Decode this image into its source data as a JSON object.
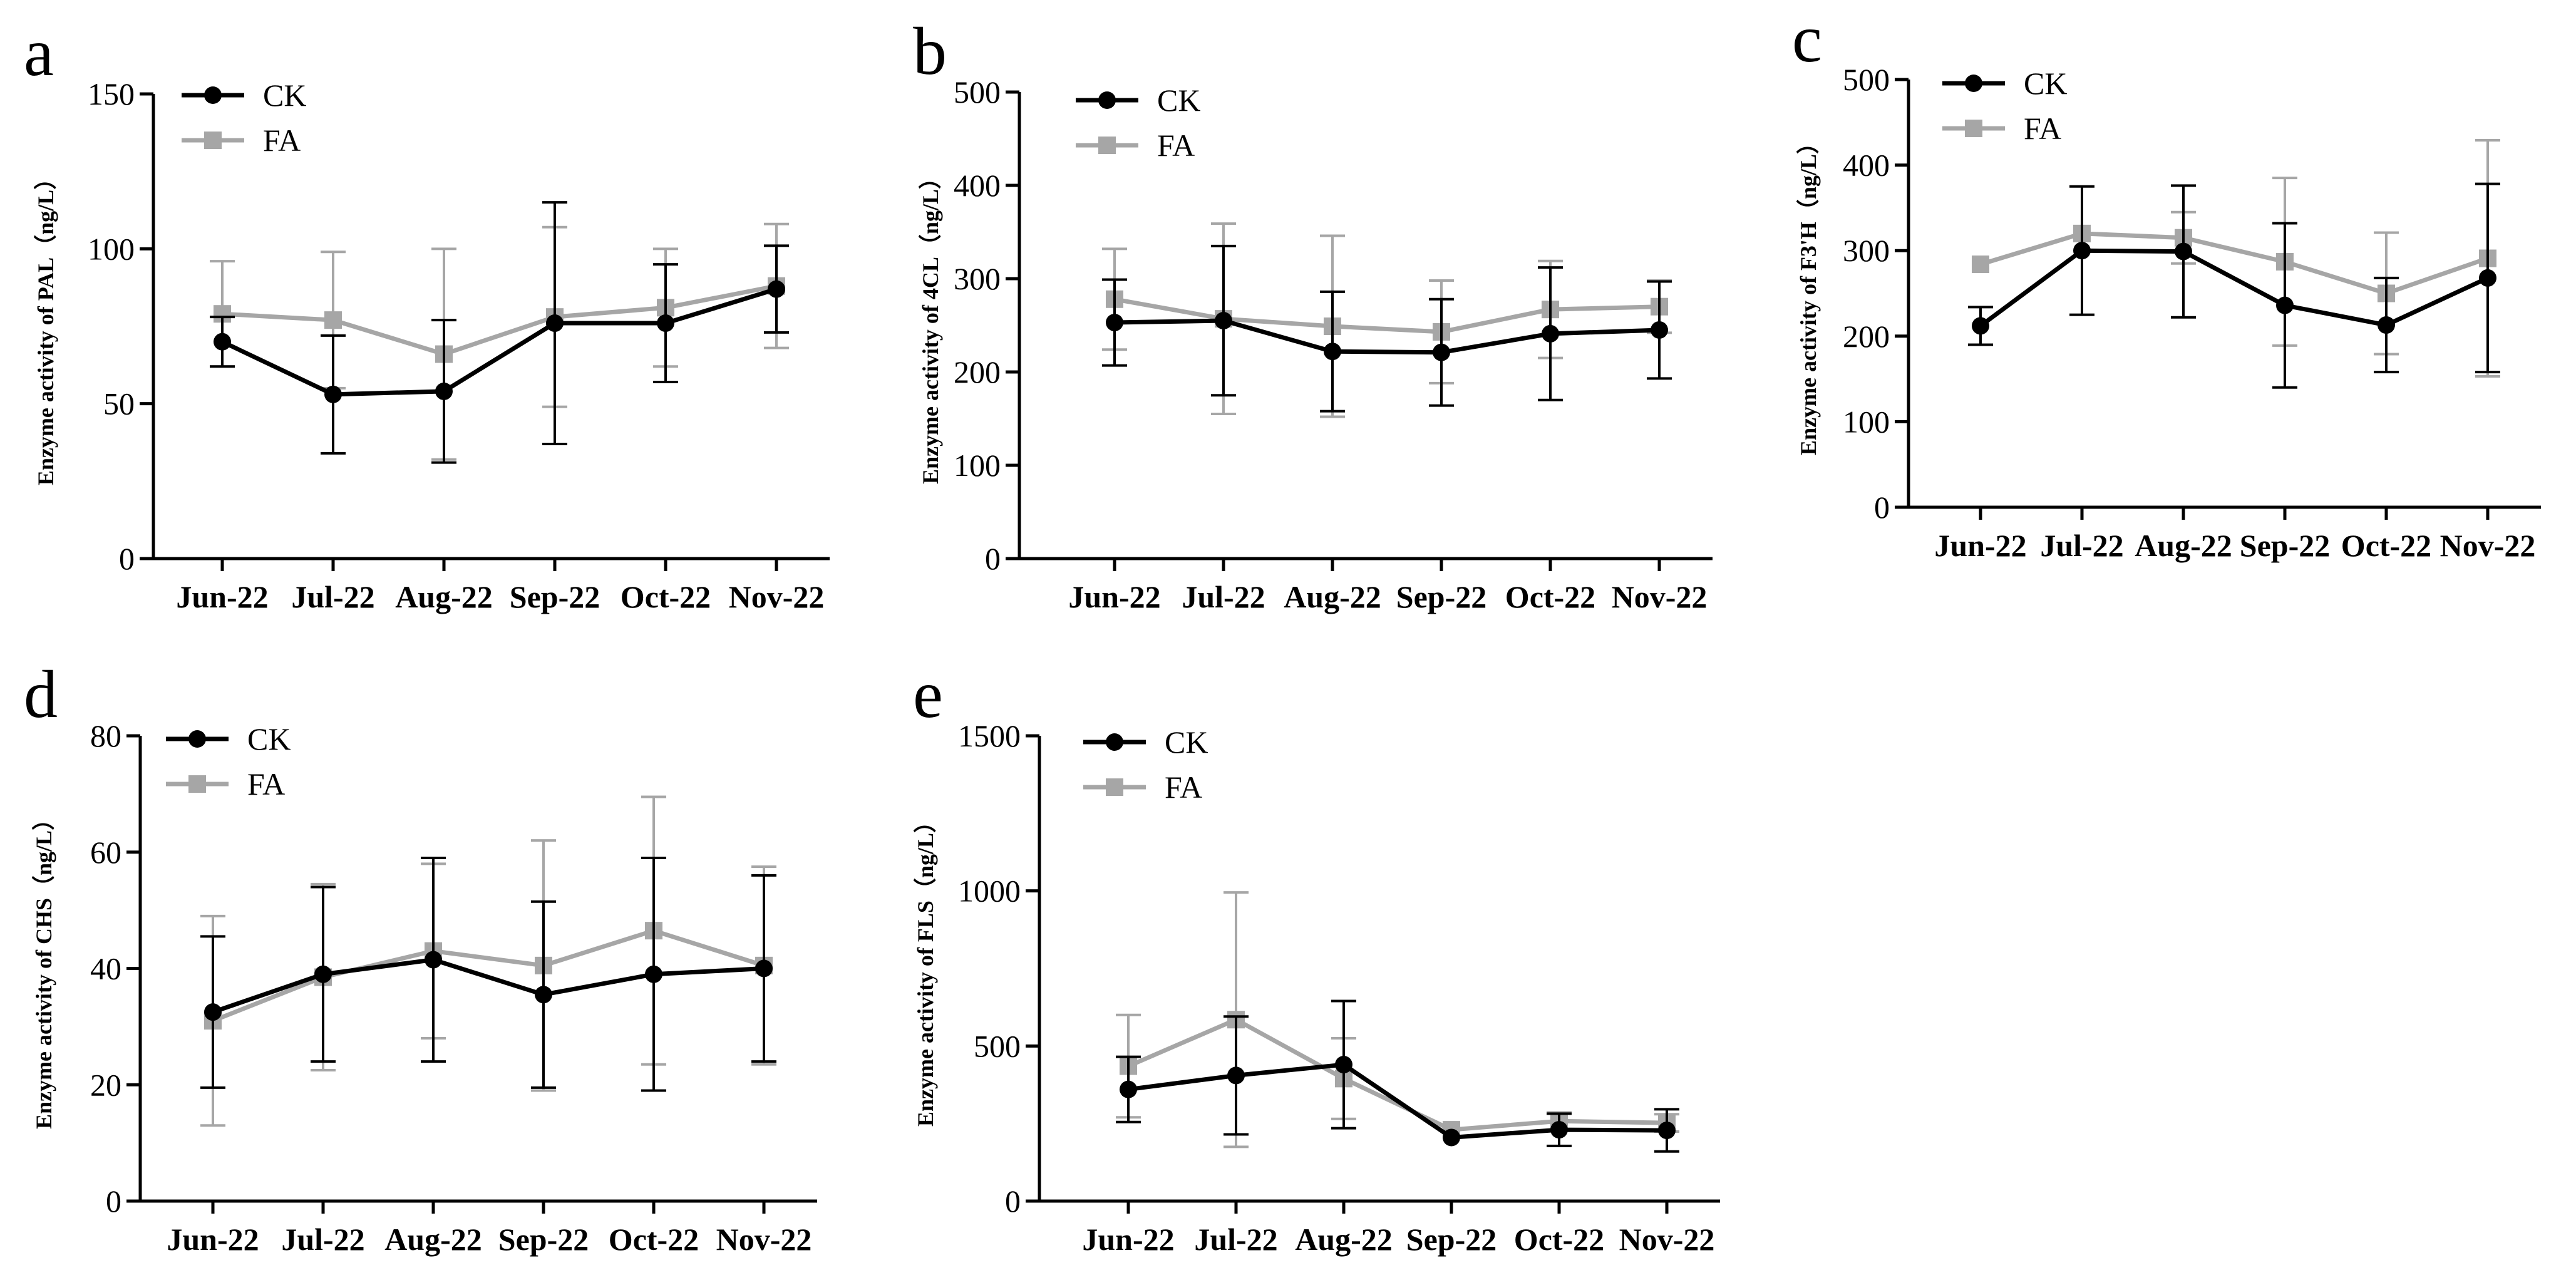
{
  "figure": {
    "background": "#ffffff",
    "ck_color": "#000000",
    "fa_color": "#a6a6a6"
  },
  "chart_data": [
    {
      "panel": "a",
      "type": "line",
      "ylabel": "Enzyme activity of PAL（ng/L）",
      "xlabel": "",
      "categories": [
        "Jun-22",
        "Jul-22",
        "Aug-22",
        "Sep-22",
        "Oct-22",
        "Nov-22"
      ],
      "ylim": [
        0,
        150
      ],
      "yticks": [
        0,
        50,
        100,
        150
      ],
      "legend": "top-left",
      "series": [
        {
          "name": "CK",
          "values": [
            70,
            53,
            54,
            76,
            76,
            87
          ],
          "errors": [
            8,
            19,
            23,
            39,
            19,
            14
          ]
        },
        {
          "name": "FA",
          "values": [
            79,
            77,
            66,
            78,
            81,
            88
          ],
          "errors": [
            17,
            22,
            34,
            29,
            19,
            20
          ]
        }
      ]
    },
    {
      "panel": "b",
      "type": "line",
      "ylabel": "Enzyme activity of 4CL（ng/L）",
      "xlabel": "",
      "categories": [
        "Jun-22",
        "Jul-22",
        "Aug-22",
        "Sep-22",
        "Oct-22",
        "Nov-22"
      ],
      "ylim": [
        0,
        500
      ],
      "yticks": [
        0,
        100,
        200,
        300,
        400,
        500
      ],
      "legend": "top-left",
      "series": [
        {
          "name": "CK",
          "values": [
            253,
            255,
            222,
            221,
            241,
            245
          ],
          "errors": [
            46,
            80,
            64,
            57,
            71,
            52
          ]
        },
        {
          "name": "FA",
          "values": [
            278,
            257,
            249,
            243,
            267,
            270
          ],
          "errors": [
            54,
            102,
            97,
            55,
            52,
            28
          ]
        }
      ]
    },
    {
      "panel": "c",
      "type": "line",
      "ylabel": "Enzyme activity of F3'H（ng/L）",
      "xlabel": "",
      "categories": [
        "Jun-22",
        "Jul-22",
        "Aug-22",
        "Sep-22",
        "Oct-22",
        "Nov-22"
      ],
      "ylim": [
        0,
        500
      ],
      "yticks": [
        0,
        100,
        200,
        300,
        400,
        500
      ],
      "legend": "top-left",
      "series": [
        {
          "name": "CK",
          "values": [
            212,
            300,
            299,
            236,
            213,
            268
          ],
          "errors": [
            22,
            75,
            77,
            96,
            55,
            110
          ]
        },
        {
          "name": "FA",
          "values": [
            284,
            320,
            315,
            287,
            250,
            291
          ],
          "errors": [
            0,
            0,
            30,
            98,
            71,
            138
          ]
        }
      ]
    },
    {
      "panel": "d",
      "type": "line",
      "ylabel": "Enzyme activity of CHS（ng/L）",
      "xlabel": "",
      "categories": [
        "Jun-22",
        "Jul-22",
        "Aug-22",
        "Sep-22",
        "Oct-22",
        "Nov-22"
      ],
      "ylim": [
        0,
        80
      ],
      "yticks": [
        0,
        20,
        40,
        60,
        80
      ],
      "legend": "top-left",
      "series": [
        {
          "name": "CK",
          "values": [
            32.5,
            39,
            41.5,
            35.5,
            39,
            40
          ],
          "errors": [
            13,
            15,
            17.5,
            16,
            20,
            16
          ]
        },
        {
          "name": "FA",
          "values": [
            31,
            38.5,
            43,
            40.5,
            46.5,
            40.5
          ],
          "errors": [
            18,
            16,
            15,
            21.5,
            23,
            17
          ]
        }
      ]
    },
    {
      "panel": "e",
      "type": "line",
      "ylabel": "Enzyme activity of FLS（ng/L）",
      "xlabel": "",
      "categories": [
        "Jun-22",
        "Jul-22",
        "Aug-22",
        "Sep-22",
        "Oct-22",
        "Nov-22"
      ],
      "ylim": [
        0,
        1500
      ],
      "yticks": [
        0,
        500,
        1000,
        1500
      ],
      "legend": "top-left",
      "series": [
        {
          "name": "CK",
          "values": [
            360,
            405,
            440,
            205,
            230,
            228
          ],
          "errors": [
            105,
            190,
            205,
            0,
            52,
            68
          ]
        },
        {
          "name": "FA",
          "values": [
            435,
            585,
            395,
            230,
            258,
            252
          ],
          "errors": [
            165,
            410,
            130,
            0,
            28,
            28
          ]
        }
      ]
    }
  ]
}
